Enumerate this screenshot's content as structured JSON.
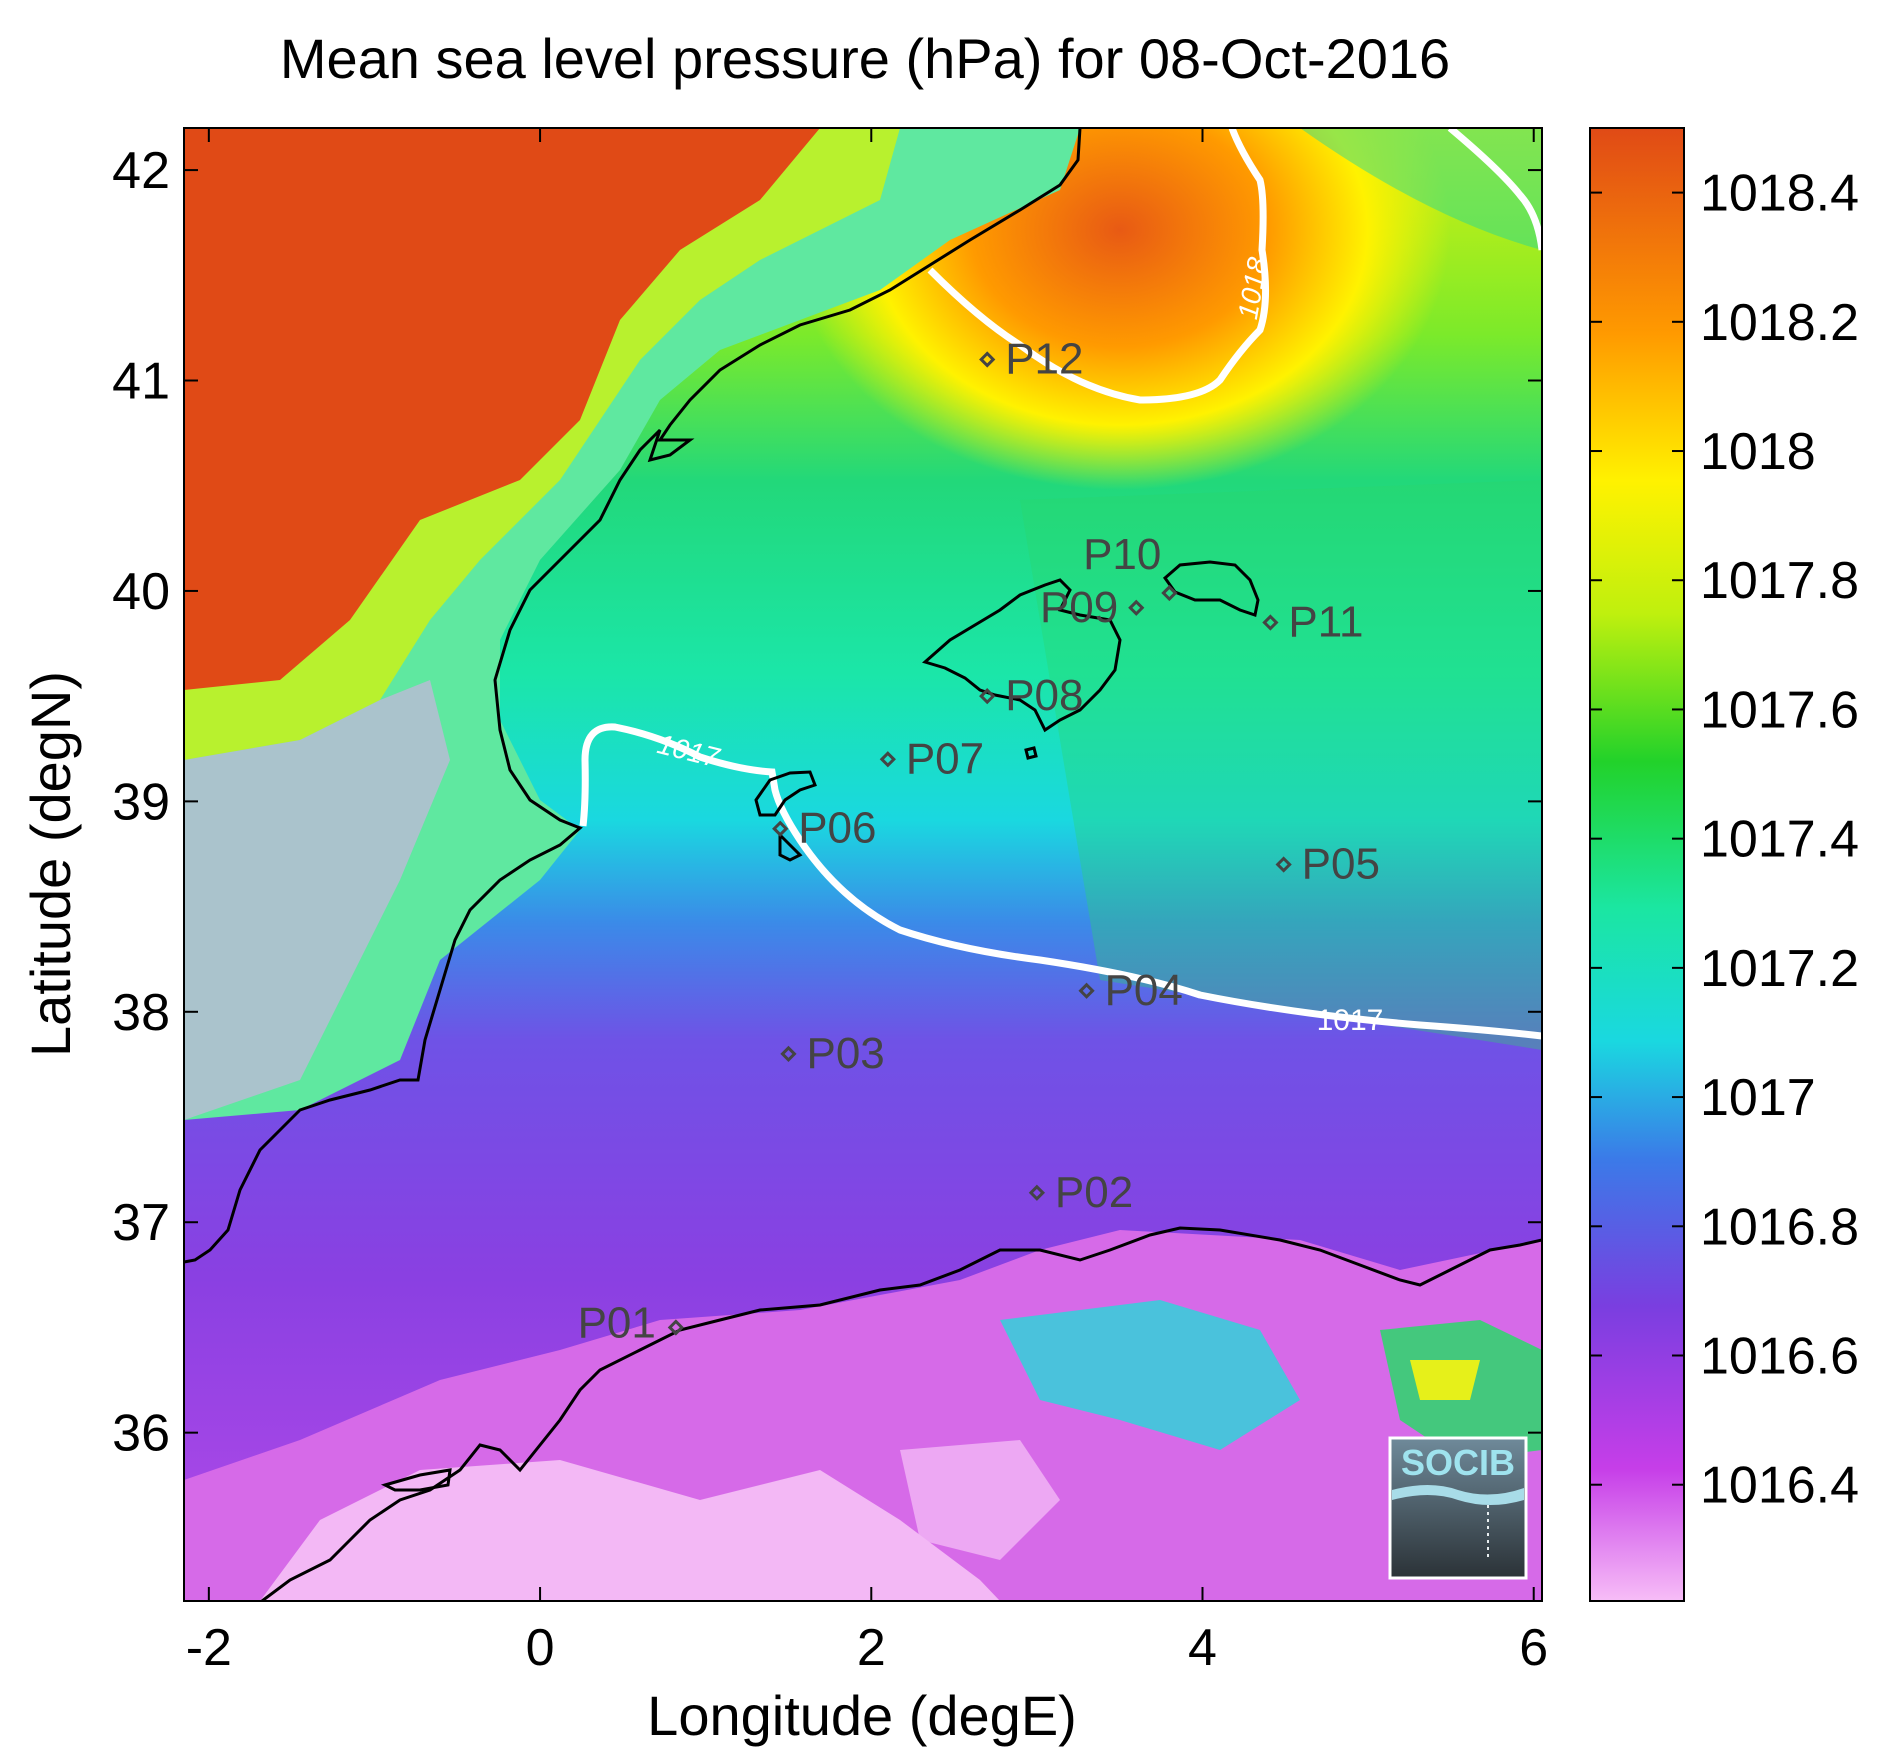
{
  "figure": {
    "title": "Mean sea level pressure (hPa) for 08-Oct-2016",
    "xlabel": "Longitude (degE)",
    "ylabel": "Latitude (degN)",
    "logo_text": "SOCIB"
  },
  "chart_data": {
    "type": "heatmap",
    "title": "Mean sea level pressure (hPa) for 08-Oct-2016",
    "xlabel": "Longitude (degE)",
    "ylabel": "Latitude (degN)",
    "xlim": [
      -2.15,
      6.05
    ],
    "ylim": [
      35.2,
      42.2
    ],
    "x_ticks": [
      -2,
      0,
      2,
      4,
      6
    ],
    "y_ticks": [
      36,
      37,
      38,
      39,
      40,
      41,
      42
    ],
    "colorbar": {
      "range": [
        1016.22,
        1018.5
      ],
      "ticks": [
        1016.4,
        1016.6,
        1016.8,
        1017,
        1017.2,
        1017.4,
        1017.6,
        1017.8,
        1018,
        1018.2,
        1018.4
      ],
      "colors": {
        "low": "#f7bdf7",
        "violet": "#c63ee8",
        "purple": "#7a3ee0",
        "blue": "#3b7ae8",
        "cyan": "#1ad8e0",
        "teal": "#1be6a2",
        "green": "#22d22a",
        "lime": "#bff00e",
        "yellow": "#fff200",
        "orange": "#ff9a00",
        "red": "#e04a16"
      }
    },
    "contours": [
      {
        "label": "1017"
      },
      {
        "label": "1018"
      }
    ],
    "points": [
      {
        "name": "P01",
        "lon": 0.82,
        "lat": 36.5
      },
      {
        "name": "P02",
        "lon": 3.0,
        "lat": 37.14
      },
      {
        "name": "P03",
        "lon": 1.5,
        "lat": 37.8
      },
      {
        "name": "P04",
        "lon": 3.3,
        "lat": 38.1
      },
      {
        "name": "P05",
        "lon": 4.49,
        "lat": 38.7
      },
      {
        "name": "P06",
        "lon": 1.45,
        "lat": 38.87
      },
      {
        "name": "P07",
        "lon": 2.1,
        "lat": 39.2
      },
      {
        "name": "P08",
        "lon": 2.7,
        "lat": 39.5
      },
      {
        "name": "P09",
        "lon": 3.6,
        "lat": 39.92
      },
      {
        "name": "P10",
        "lon": 3.8,
        "lat": 39.99
      },
      {
        "name": "P11",
        "lon": 4.41,
        "lat": 39.85
      },
      {
        "name": "P12",
        "lon": 2.7,
        "lat": 41.1
      }
    ]
  }
}
